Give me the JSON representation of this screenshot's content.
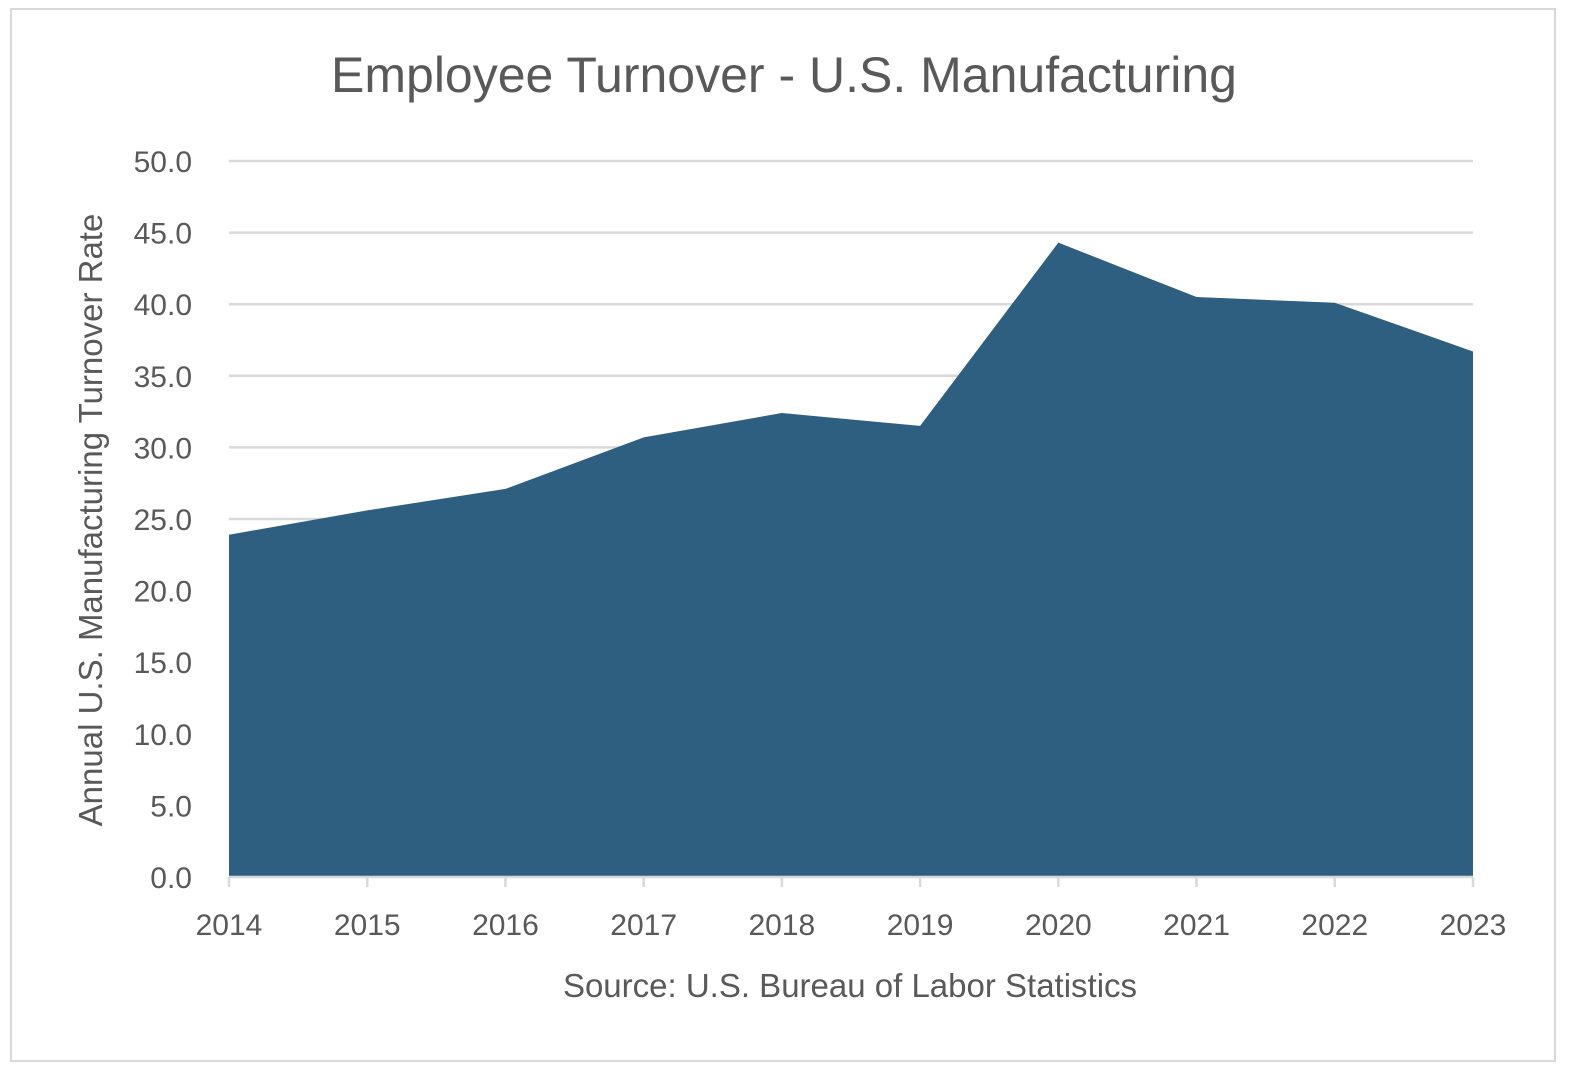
{
  "chart_data": {
    "type": "area",
    "title": "Employee Turnover - U.S. Manufacturing",
    "xlabel": "Source: U.S. Bureau of Labor Statistics",
    "ylabel": "Annual U.S. Manufacturing Turnover Rate",
    "x": [
      "2014",
      "2015",
      "2016",
      "2017",
      "2018",
      "2019",
      "2020",
      "2021",
      "2022",
      "2023"
    ],
    "series": [
      {
        "values": [
          23.9,
          25.6,
          27.1,
          30.7,
          32.4,
          31.5,
          44.3,
          40.5,
          40.1,
          36.7
        ]
      }
    ],
    "ylim": [
      0,
      50
    ],
    "yticks": [
      "0.0",
      "5.0",
      "10.0",
      "15.0",
      "20.0",
      "25.0",
      "30.0",
      "35.0",
      "40.0",
      "45.0",
      "50.0"
    ],
    "grid": true,
    "legend": "none",
    "colors": {
      "area": "#2e5e80",
      "grid": "#d9d9d9",
      "text": "#595959"
    }
  }
}
